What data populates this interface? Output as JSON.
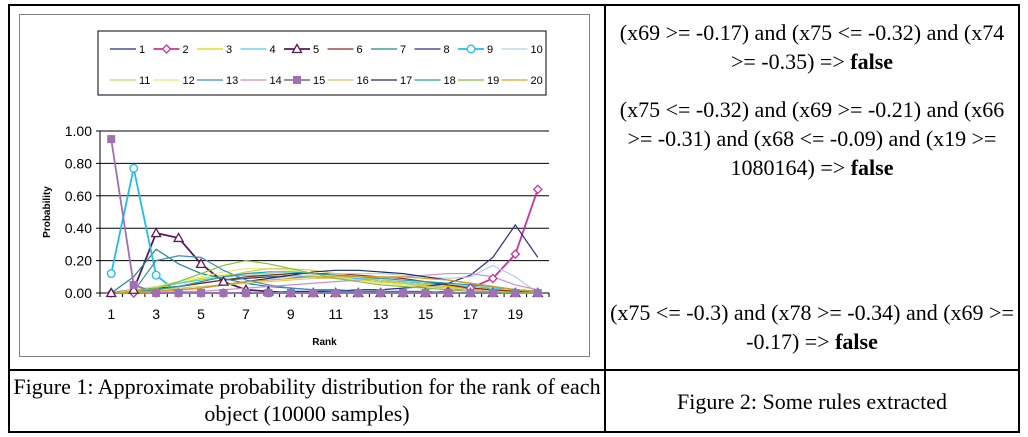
{
  "chart_data": {
    "type": "line",
    "ylabel": "Probability",
    "xlabel": "Rank",
    "x": [
      1,
      2,
      3,
      4,
      5,
      6,
      7,
      8,
      9,
      10,
      11,
      12,
      13,
      14,
      15,
      16,
      17,
      18,
      19,
      20
    ],
    "x_tick_labels": [
      "1",
      "3",
      "5",
      "7",
      "9",
      "11",
      "13",
      "15",
      "17",
      "19"
    ],
    "y_tick_labels": [
      "0.00",
      "0.20",
      "0.40",
      "0.60",
      "0.80",
      "1.00"
    ],
    "ylim": [
      0,
      1
    ],
    "grid": "horizontal",
    "legend_position": "top",
    "series": [
      {
        "name": "1",
        "color": "#1f2f7a",
        "marker": "none",
        "values": [
          0,
          0.02,
          0.03,
          0.04,
          0.06,
          0.08,
          0.09,
          0.1,
          0.1,
          0.1,
          0.09,
          0.08,
          0.07,
          0.06,
          0.05,
          0.04,
          0.03,
          0.02,
          0.01,
          0
        ]
      },
      {
        "name": "2",
        "color": "#cc3399",
        "marker": "diamond",
        "values": [
          0,
          0,
          0,
          0,
          0,
          0,
          0,
          0,
          0,
          0,
          0,
          0,
          0,
          0,
          0,
          0.01,
          0.03,
          0.09,
          0.24,
          0.64
        ]
      },
      {
        "name": "3",
        "color": "#d8d800",
        "marker": "none",
        "values": [
          0,
          0.01,
          0.03,
          0.06,
          0.09,
          0.11,
          0.12,
          0.12,
          0.11,
          0.1,
          0.09,
          0.08,
          0.07,
          0.06,
          0.05,
          0.04,
          0.03,
          0.02,
          0.01,
          0
        ]
      },
      {
        "name": "4",
        "color": "#4ec9e8",
        "marker": "none",
        "values": [
          0,
          0.02,
          0.04,
          0.06,
          0.08,
          0.1,
          0.11,
          0.11,
          0.11,
          0.1,
          0.09,
          0.09,
          0.08,
          0.07,
          0.06,
          0.05,
          0.04,
          0.03,
          0.02,
          0.01
        ]
      },
      {
        "name": "5",
        "color": "#5a1a5a",
        "marker": "triangle",
        "values": [
          0,
          0.02,
          0.37,
          0.34,
          0.18,
          0.07,
          0.02,
          0.01,
          0,
          0,
          0,
          0,
          0,
          0,
          0,
          0,
          0,
          0,
          0,
          0
        ]
      },
      {
        "name": "6",
        "color": "#8b2a1a",
        "marker": "none",
        "values": [
          0,
          0.01,
          0.02,
          0.04,
          0.06,
          0.08,
          0.1,
          0.11,
          0.12,
          0.12,
          0.12,
          0.11,
          0.1,
          0.09,
          0.07,
          0.05,
          0.03,
          0.02,
          0.01,
          0
        ]
      },
      {
        "name": "7",
        "color": "#1a8a8a",
        "marker": "none",
        "values": [
          0,
          0.1,
          0.27,
          0.18,
          0.12,
          0.09,
          0.06,
          0.04,
          0.03,
          0.02,
          0.02,
          0.01,
          0.01,
          0.01,
          0.01,
          0,
          0,
          0,
          0,
          0
        ]
      },
      {
        "name": "8",
        "color": "#2a2a8a",
        "marker": "none",
        "values": [
          0,
          0,
          0,
          0,
          0,
          0,
          0,
          0,
          0.01,
          0.01,
          0.01,
          0.02,
          0.02,
          0.03,
          0.04,
          0.06,
          0.11,
          0.22,
          0.42,
          0.22
        ]
      },
      {
        "name": "9",
        "color": "#22bbee",
        "marker": "circle",
        "values": [
          0.12,
          0.77,
          0.11,
          0,
          0,
          0,
          0,
          0,
          0,
          0,
          0,
          0,
          0,
          0,
          0,
          0,
          0,
          0,
          0,
          0
        ]
      },
      {
        "name": "10",
        "color": "#b0d0e8",
        "marker": "none",
        "values": [
          0,
          0,
          0.01,
          0.02,
          0.03,
          0.05,
          0.07,
          0.09,
          0.1,
          0.11,
          0.12,
          0.12,
          0.12,
          0.11,
          0.1,
          0.09,
          0.1,
          0.17,
          0.1,
          0
        ]
      },
      {
        "name": "11",
        "color": "#d0d070",
        "marker": "none",
        "values": [
          0,
          0.01,
          0.02,
          0.03,
          0.04,
          0.05,
          0.06,
          0.07,
          0.08,
          0.09,
          0.09,
          0.1,
          0.1,
          0.1,
          0.09,
          0.08,
          0.06,
          0.04,
          0.02,
          0.01
        ]
      },
      {
        "name": "12",
        "color": "#e8e870",
        "marker": "none",
        "values": [
          0,
          0.02,
          0.04,
          0.07,
          0.1,
          0.13,
          0.15,
          0.15,
          0.14,
          0.12,
          0.1,
          0.08,
          0.06,
          0.05,
          0.04,
          0.03,
          0.02,
          0.01,
          0,
          0
        ]
      },
      {
        "name": "13",
        "color": "#3a90c0",
        "marker": "none",
        "values": [
          0,
          0.01,
          0.2,
          0.23,
          0.22,
          0.14,
          0.08,
          0.05,
          0.03,
          0.02,
          0.01,
          0.01,
          0,
          0,
          0,
          0,
          0,
          0,
          0,
          0
        ]
      },
      {
        "name": "14",
        "color": "#c890c8",
        "marker": "none",
        "values": [
          0,
          0,
          0,
          0.01,
          0.01,
          0.02,
          0.03,
          0.04,
          0.05,
          0.06,
          0.07,
          0.08,
          0.09,
          0.1,
          0.11,
          0.12,
          0.12,
          0.1,
          0.05,
          0.02
        ]
      },
      {
        "name": "15",
        "color": "#a070b0",
        "marker": "square",
        "values": [
          0.95,
          0.05,
          0,
          0,
          0,
          0,
          0,
          0,
          0,
          0,
          0,
          0,
          0,
          0,
          0,
          0,
          0,
          0,
          0,
          0
        ]
      },
      {
        "name": "16",
        "color": "#e0c060",
        "marker": "none",
        "values": [
          0,
          0.01,
          0.02,
          0.04,
          0.07,
          0.1,
          0.13,
          0.15,
          0.15,
          0.14,
          0.12,
          0.1,
          0.08,
          0.06,
          0.04,
          0.03,
          0.02,
          0.01,
          0,
          0
        ]
      },
      {
        "name": "17",
        "color": "#1a2a6a",
        "marker": "none",
        "values": [
          0,
          0,
          0.01,
          0.02,
          0.03,
          0.05,
          0.07,
          0.09,
          0.11,
          0.13,
          0.14,
          0.14,
          0.13,
          0.12,
          0.1,
          0.08,
          0.06,
          0.04,
          0.02,
          0.01
        ]
      },
      {
        "name": "18",
        "color": "#20a0a0",
        "marker": "none",
        "values": [
          0,
          0.01,
          0.02,
          0.04,
          0.07,
          0.1,
          0.12,
          0.13,
          0.13,
          0.12,
          0.11,
          0.1,
          0.09,
          0.08,
          0.07,
          0.06,
          0.05,
          0.04,
          0.02,
          0.01
        ]
      },
      {
        "name": "19",
        "color": "#80c040",
        "marker": "none",
        "values": [
          0,
          0.01,
          0.03,
          0.07,
          0.12,
          0.17,
          0.2,
          0.18,
          0.15,
          0.12,
          0.09,
          0.07,
          0.05,
          0.04,
          0.03,
          0.02,
          0.01,
          0.01,
          0,
          0
        ]
      },
      {
        "name": "20",
        "color": "#e0a020",
        "marker": "none",
        "values": [
          0,
          0,
          0.01,
          0.02,
          0.03,
          0.05,
          0.07,
          0.08,
          0.09,
          0.1,
          0.1,
          0.1,
          0.1,
          0.1,
          0.09,
          0.08,
          0.06,
          0.04,
          0.02,
          0.01
        ]
      }
    ]
  },
  "rules": [
    {
      "text": "(x69 >= -0.17) and (x75 <= -0.32) and  (x74 >= -0.35) =>",
      "result": "false"
    },
    {
      "text": "(x75 <= -0.32) and (x69 >= -0.21) and (x66 >= -0.31) and (x68 <= -0.09) and (x19 >= 1080164) =>",
      "result": "false"
    },
    {
      "text": "(x75 <= -0.3) and (x78 >= -0.34) and (x69 >= -0.17) =>",
      "result": "false"
    }
  ],
  "captions": {
    "figure1": "Figure 1: Approximate probability distribution for the rank of each object (10000 samples)",
    "figure2": "Figure 2: Some rules extracted"
  }
}
